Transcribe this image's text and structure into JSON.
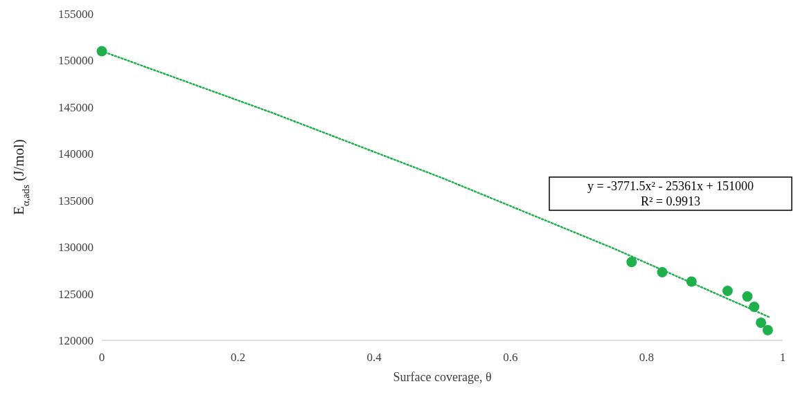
{
  "chart_data": {
    "type": "scatter",
    "xlabel": "Surface coverage, θ",
    "ylabel": "E$_{α,ads}$ (J/mol)",
    "xlim": [
      0,
      1
    ],
    "xticks": [
      0,
      0.2,
      0.4,
      0.6,
      0.8,
      1
    ],
    "ylim": [
      120000,
      155000
    ],
    "yticks": [
      120000,
      125000,
      130000,
      135000,
      140000,
      145000,
      150000,
      155000
    ],
    "series": [
      {
        "color": "#1fb04c",
        "marker": "circle",
        "x": [
          0,
          0.778,
          0.823,
          0.866,
          0.919,
          0.948,
          0.958,
          0.968,
          0.978
        ],
        "values": [
          151000,
          128400,
          127300,
          126300,
          125300,
          124700,
          123600,
          121900,
          121100
        ]
      },
      {
        "type": "line",
        "color": "#1fb04c",
        "line_style": "dotted",
        "x": [
          0,
          0.25,
          0.5,
          0.75,
          0.98
        ],
        "values": [
          151000,
          144400,
          137400,
          129900,
          122500
        ]
      }
    ],
    "annotations": [
      "y = -3771.5x² - 25361x + 151000\nR² = 0.9913"
    ]
  }
}
